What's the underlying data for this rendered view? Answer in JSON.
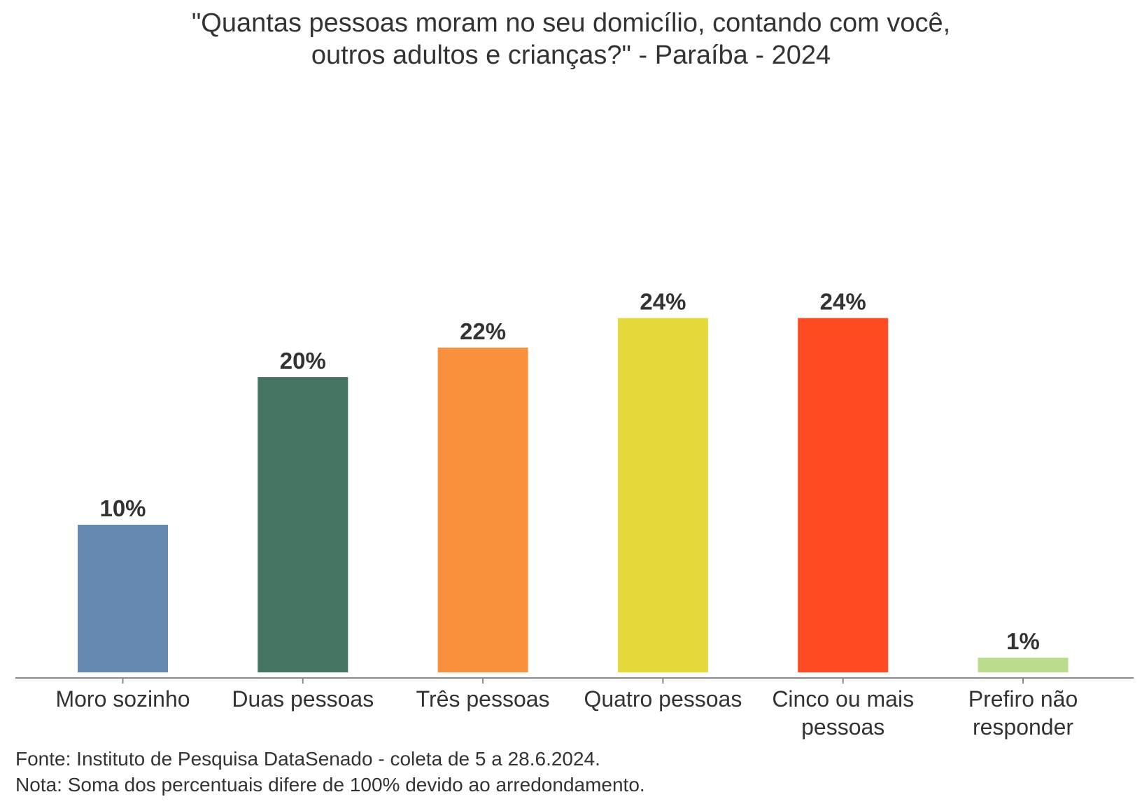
{
  "chart_data": {
    "type": "bar",
    "title_lines": [
      "\"Quantas pessoas moram no seu domicílio, contando com você,",
      "outros adultos e crianças?\" - Paraíba - 2024"
    ],
    "categories": [
      [
        "Moro sozinho"
      ],
      [
        "Duas pessoas"
      ],
      [
        "Três pessoas"
      ],
      [
        "Quatro pessoas"
      ],
      [
        "Cinco ou mais",
        "pessoas"
      ],
      [
        "Prefiro não",
        "responder"
      ]
    ],
    "values": [
      10,
      20,
      22,
      24,
      24,
      1
    ],
    "value_labels": [
      "10%",
      "20%",
      "22%",
      "24%",
      "24%",
      "1%"
    ],
    "colors": [
      "#6688b0",
      "#447562",
      "#f9913c",
      "#e4d83a",
      "#ff4b22",
      "#b9dc8d"
    ],
    "unit": "%",
    "xlabel": "",
    "ylabel": "",
    "ylim": [
      0,
      40
    ],
    "grid": false,
    "legend": "none"
  },
  "footer": {
    "source": "Fonte: Instituto de Pesquisa DataSenado - coleta de 5 a 28.6.2024.",
    "note": "Nota: Soma dos percentuais difere de 100% devido ao arredondamento."
  }
}
